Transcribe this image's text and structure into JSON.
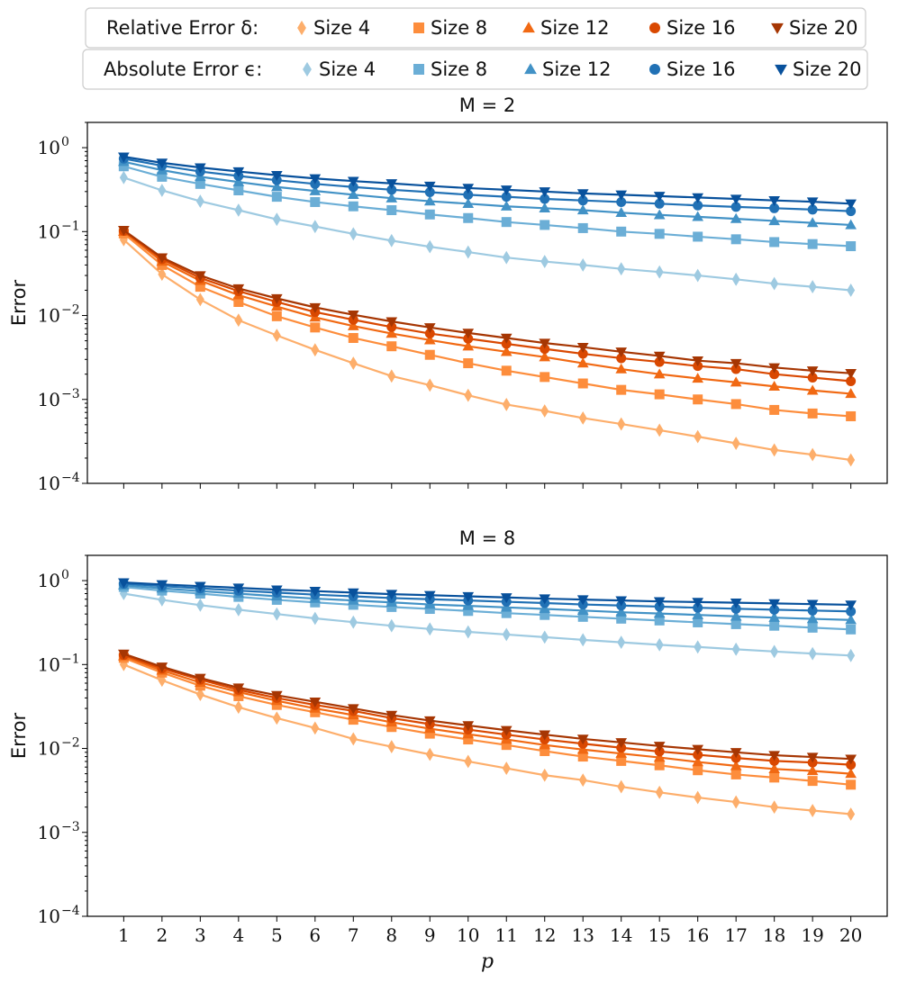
{
  "legends": [
    {
      "label": "Relative Error δ:",
      "entries": [
        {
          "name": "Size 4",
          "color": "#fdae6b",
          "marker": "diamond"
        },
        {
          "name": "Size 8",
          "color": "#fd8d3c",
          "marker": "square"
        },
        {
          "name": "Size 12",
          "color": "#f16913",
          "marker": "triangle-up"
        },
        {
          "name": "Size 16",
          "color": "#d94801",
          "marker": "circle"
        },
        {
          "name": "Size 20",
          "color": "#a63603",
          "marker": "triangle-down"
        }
      ]
    },
    {
      "label": "Absolute Error ϵ:",
      "entries": [
        {
          "name": "Size 4",
          "color": "#9ecae1",
          "marker": "diamond"
        },
        {
          "name": "Size 8",
          "color": "#6baed6",
          "marker": "square"
        },
        {
          "name": "Size 12",
          "color": "#4292c6",
          "marker": "triangle-up"
        },
        {
          "name": "Size 16",
          "color": "#2171b5",
          "marker": "circle"
        },
        {
          "name": "Size 20",
          "color": "#08519c",
          "marker": "triangle-down"
        }
      ]
    }
  ],
  "chart_data": [
    {
      "type": "line",
      "title": "M = 2",
      "ylabel": "Error",
      "xlabel": "",
      "yscale": "log",
      "ylim": [
        0.0001,
        2
      ],
      "y_ticks": [
        {
          "base": "10",
          "exp": "0"
        },
        {
          "base": "10",
          "exp": "−1"
        },
        {
          "base": "10",
          "exp": "−2"
        },
        {
          "base": "10",
          "exp": "−3"
        },
        {
          "base": "10",
          "exp": "−4"
        }
      ],
      "x": [
        1,
        2,
        3,
        4,
        5,
        6,
        7,
        8,
        9,
        10,
        11,
        12,
        13,
        14,
        15,
        16,
        17,
        18,
        19,
        20
      ],
      "series": [
        {
          "group": "Relative Error δ",
          "name": "Size 4",
          "values": [
            0.08,
            0.031,
            0.0155,
            0.0088,
            0.0058,
            0.0039,
            0.0027,
            0.0019,
            0.00148,
            0.00112,
            0.00087,
            0.00073,
            0.0006,
            0.00051,
            0.00043,
            0.00036,
            0.0003,
            0.00025,
            0.00022,
            0.00019
          ]
        },
        {
          "group": "Relative Error δ",
          "name": "Size 8",
          "values": [
            0.095,
            0.04,
            0.022,
            0.0145,
            0.0098,
            0.0072,
            0.0054,
            0.0043,
            0.0034,
            0.0027,
            0.0022,
            0.00185,
            0.00155,
            0.0013,
            0.00115,
            0.001,
            0.00088,
            0.00075,
            0.00068,
            0.00063
          ]
        },
        {
          "group": "Relative Error δ",
          "name": "Size 12",
          "values": [
            0.1,
            0.044,
            0.026,
            0.0175,
            0.0128,
            0.0095,
            0.0075,
            0.0061,
            0.0051,
            0.0043,
            0.0037,
            0.0032,
            0.0027,
            0.0023,
            0.002,
            0.00178,
            0.0016,
            0.00143,
            0.00128,
            0.00117
          ]
        },
        {
          "group": "Relative Error δ",
          "name": "Size 16",
          "values": [
            0.102,
            0.047,
            0.028,
            0.0195,
            0.0145,
            0.011,
            0.0089,
            0.0073,
            0.0061,
            0.0053,
            0.0046,
            0.004,
            0.0035,
            0.0031,
            0.0028,
            0.0025,
            0.0023,
            0.002,
            0.00182,
            0.00165
          ]
        },
        {
          "group": "Relative Error δ",
          "name": "Size 20",
          "values": [
            0.104,
            0.049,
            0.03,
            0.021,
            0.016,
            0.0125,
            0.0102,
            0.0085,
            0.0072,
            0.0062,
            0.0054,
            0.0047,
            0.0042,
            0.0037,
            0.0033,
            0.0029,
            0.0027,
            0.0024,
            0.0022,
            0.00205
          ]
        },
        {
          "group": "Absolute Error ϵ",
          "name": "Size 4",
          "values": [
            0.44,
            0.31,
            0.23,
            0.18,
            0.14,
            0.115,
            0.094,
            0.078,
            0.066,
            0.057,
            0.049,
            0.044,
            0.04,
            0.036,
            0.033,
            0.03,
            0.027,
            0.024,
            0.022,
            0.02
          ]
        },
        {
          "group": "Absolute Error ϵ",
          "name": "Size 8",
          "values": [
            0.6,
            0.45,
            0.37,
            0.31,
            0.26,
            0.225,
            0.2,
            0.18,
            0.16,
            0.145,
            0.13,
            0.12,
            0.11,
            0.1,
            0.094,
            0.087,
            0.081,
            0.075,
            0.071,
            0.067
          ]
        },
        {
          "group": "Absolute Error ϵ",
          "name": "Size 12",
          "values": [
            0.68,
            0.54,
            0.45,
            0.39,
            0.34,
            0.305,
            0.275,
            0.25,
            0.23,
            0.215,
            0.2,
            0.19,
            0.18,
            0.168,
            0.158,
            0.15,
            0.142,
            0.134,
            0.127,
            0.12
          ]
        },
        {
          "group": "Absolute Error ϵ",
          "name": "Size 16",
          "values": [
            0.74,
            0.61,
            0.52,
            0.46,
            0.41,
            0.37,
            0.34,
            0.315,
            0.295,
            0.275,
            0.26,
            0.245,
            0.235,
            0.225,
            0.215,
            0.205,
            0.197,
            0.19,
            0.183,
            0.175
          ]
        },
        {
          "group": "Absolute Error ϵ",
          "name": "Size 20",
          "values": [
            0.78,
            0.66,
            0.58,
            0.52,
            0.47,
            0.43,
            0.4,
            0.375,
            0.35,
            0.33,
            0.315,
            0.3,
            0.285,
            0.275,
            0.265,
            0.255,
            0.245,
            0.235,
            0.227,
            0.215
          ]
        }
      ]
    },
    {
      "type": "line",
      "title": "M = 8",
      "ylabel": "Error",
      "xlabel": "p",
      "yscale": "log",
      "ylim": [
        0.0001,
        2
      ],
      "x_ticks": [
        "1",
        "2",
        "3",
        "4",
        "5",
        "6",
        "7",
        "8",
        "9",
        "10",
        "11",
        "12",
        "13",
        "14",
        "15",
        "16",
        "17",
        "18",
        "19",
        "20"
      ],
      "y_ticks": [
        {
          "base": "10",
          "exp": "0"
        },
        {
          "base": "10",
          "exp": "−1"
        },
        {
          "base": "10",
          "exp": "−2"
        },
        {
          "base": "10",
          "exp": "−3"
        },
        {
          "base": "10",
          "exp": "−4"
        }
      ],
      "x": [
        1,
        2,
        3,
        4,
        5,
        6,
        7,
        8,
        9,
        10,
        11,
        12,
        13,
        14,
        15,
        16,
        17,
        18,
        19,
        20
      ],
      "series": [
        {
          "group": "Relative Error δ",
          "name": "Size 4",
          "values": [
            0.1,
            0.065,
            0.044,
            0.031,
            0.023,
            0.0175,
            0.013,
            0.0105,
            0.0085,
            0.007,
            0.0058,
            0.0048,
            0.0042,
            0.0035,
            0.003,
            0.0026,
            0.0023,
            0.002,
            0.00182,
            0.00165
          ]
        },
        {
          "group": "Relative Error δ",
          "name": "Size 8",
          "values": [
            0.12,
            0.08,
            0.056,
            0.042,
            0.033,
            0.027,
            0.022,
            0.018,
            0.015,
            0.0128,
            0.011,
            0.0093,
            0.008,
            0.0071,
            0.0063,
            0.0055,
            0.0049,
            0.0045,
            0.0041,
            0.0037
          ]
        },
        {
          "group": "Relative Error δ",
          "name": "Size 12",
          "values": [
            0.126,
            0.085,
            0.061,
            0.047,
            0.037,
            0.03,
            0.025,
            0.0205,
            0.0172,
            0.0148,
            0.0128,
            0.011,
            0.0097,
            0.0087,
            0.0078,
            0.0069,
            0.0062,
            0.0057,
            0.0054,
            0.005
          ]
        },
        {
          "group": "Relative Error δ",
          "name": "Size 16",
          "values": [
            0.13,
            0.09,
            0.066,
            0.05,
            0.04,
            0.033,
            0.028,
            0.023,
            0.0195,
            0.0168,
            0.0146,
            0.0128,
            0.0114,
            0.0102,
            0.0092,
            0.0084,
            0.0077,
            0.0071,
            0.0068,
            0.0064
          ]
        },
        {
          "group": "Relative Error δ",
          "name": "Size 20",
          "values": [
            0.134,
            0.094,
            0.069,
            0.053,
            0.043,
            0.036,
            0.03,
            0.025,
            0.0215,
            0.0188,
            0.0165,
            0.0146,
            0.013,
            0.0118,
            0.0107,
            0.0098,
            0.009,
            0.0083,
            0.0079,
            0.0075
          ]
        },
        {
          "group": "Absolute Error ϵ",
          "name": "Size 4",
          "values": [
            0.7,
            0.59,
            0.51,
            0.45,
            0.4,
            0.355,
            0.32,
            0.29,
            0.265,
            0.245,
            0.228,
            0.212,
            0.197,
            0.184,
            0.172,
            0.162,
            0.152,
            0.143,
            0.135,
            0.128
          ]
        },
        {
          "group": "Absolute Error ϵ",
          "name": "Size 8",
          "values": [
            0.84,
            0.76,
            0.7,
            0.64,
            0.59,
            0.55,
            0.515,
            0.485,
            0.46,
            0.435,
            0.41,
            0.39,
            0.37,
            0.352,
            0.335,
            0.318,
            0.303,
            0.29,
            0.275,
            0.262
          ]
        },
        {
          "group": "Absolute Error ϵ",
          "name": "Size 12",
          "values": [
            0.88,
            0.81,
            0.75,
            0.7,
            0.65,
            0.61,
            0.58,
            0.55,
            0.52,
            0.5,
            0.48,
            0.46,
            0.44,
            0.42,
            0.405,
            0.39,
            0.375,
            0.362,
            0.35,
            0.34
          ]
        },
        {
          "group": "Absolute Error ϵ",
          "name": "Size 16",
          "values": [
            0.92,
            0.86,
            0.81,
            0.76,
            0.72,
            0.68,
            0.65,
            0.62,
            0.6,
            0.58,
            0.56,
            0.54,
            0.52,
            0.505,
            0.49,
            0.475,
            0.462,
            0.45,
            0.44,
            0.43
          ]
        },
        {
          "group": "Absolute Error ϵ",
          "name": "Size 20",
          "values": [
            0.95,
            0.9,
            0.86,
            0.82,
            0.78,
            0.75,
            0.72,
            0.69,
            0.67,
            0.65,
            0.63,
            0.61,
            0.595,
            0.58,
            0.565,
            0.555,
            0.545,
            0.535,
            0.525,
            0.515
          ]
        }
      ]
    }
  ]
}
